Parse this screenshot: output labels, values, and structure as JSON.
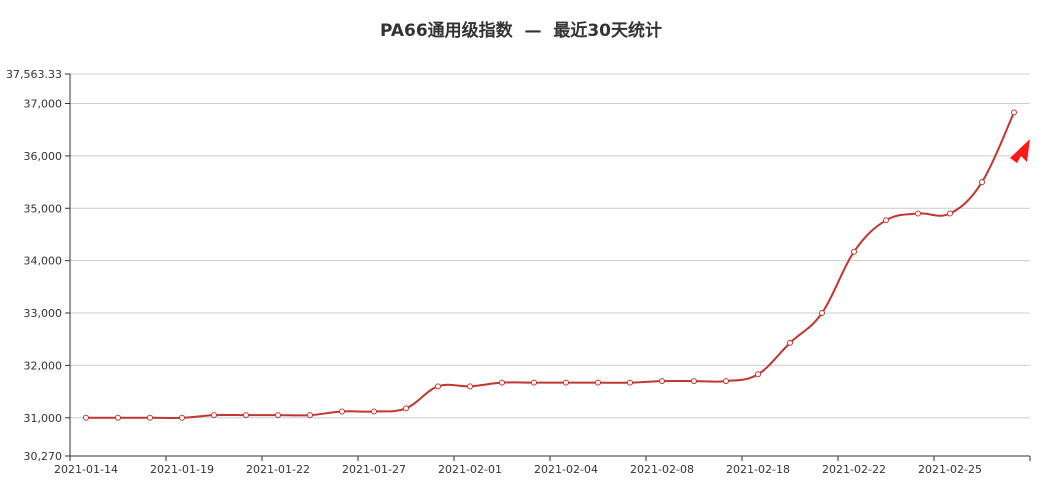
{
  "chart_data": {
    "type": "line",
    "title": "PA66通用级指数  —  最近30天统计",
    "xlabel": "",
    "ylabel": "",
    "ylim": [
      30270,
      37563.33
    ],
    "y_ticks": [
      "30,270",
      "31,000",
      "32,000",
      "33,000",
      "34,000",
      "35,000",
      "36,000",
      "37,000",
      "37,563.33"
    ],
    "y_tick_values": [
      30270,
      31000,
      32000,
      33000,
      34000,
      35000,
      36000,
      37000,
      37563.33
    ],
    "x_tick_labels": [
      "2021-01-14",
      "2021-01-19",
      "2021-01-22",
      "2021-01-27",
      "2021-02-01",
      "2021-02-04",
      "2021-02-08",
      "2021-02-18",
      "2021-02-22",
      "2021-02-25"
    ],
    "grid": true,
    "line_color": "#c23531",
    "arrow_color": "#ff1a1a",
    "series": [
      {
        "values": [
          31000,
          31000,
          31000,
          31000,
          31050,
          31050,
          31050,
          31050,
          31120,
          31120,
          31180,
          31600,
          31600,
          31670,
          31670,
          31670,
          31670,
          31670,
          31700,
          31700,
          31700,
          31830,
          32430,
          33000,
          34170,
          34770,
          34900,
          34900,
          35500,
          36830
        ]
      }
    ]
  }
}
